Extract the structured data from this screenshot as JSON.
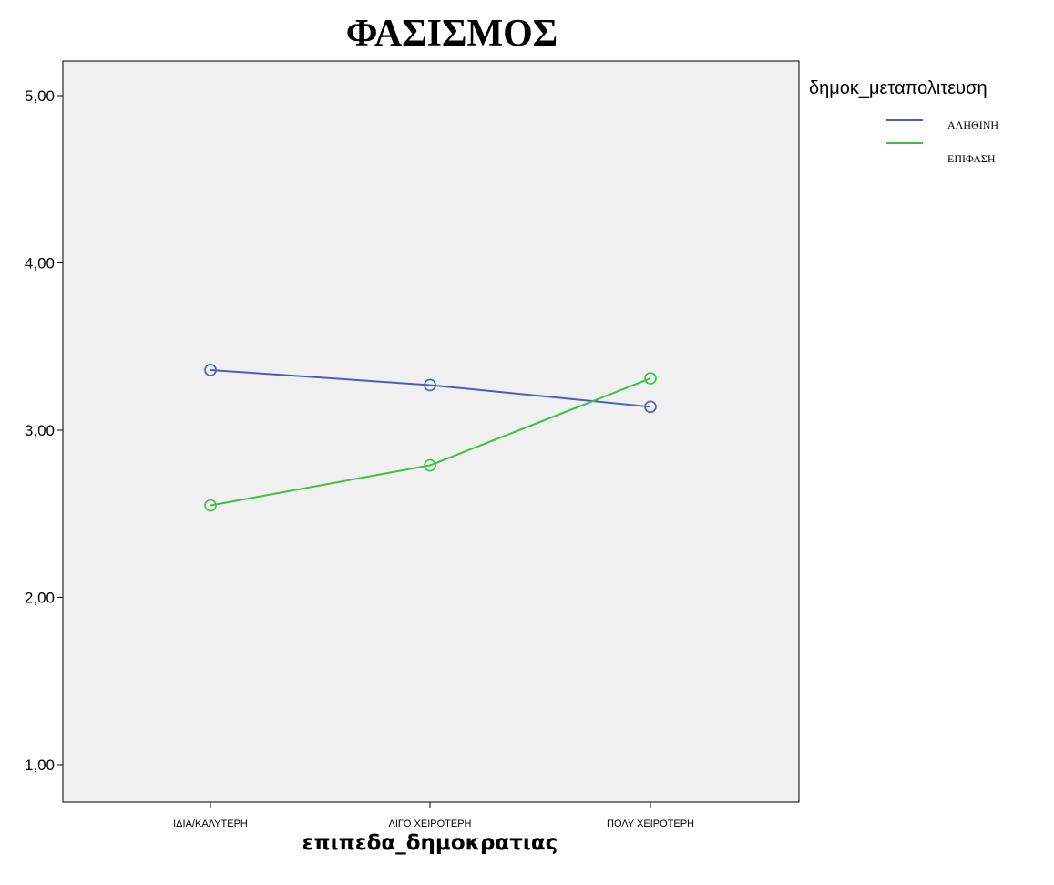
{
  "chart_data": {
    "type": "line",
    "title": "ΦΑΣΙΣΜΟΣ",
    "xlabel": "επιπεδα_δημοκρατιας",
    "ylabel": "",
    "categories": [
      "ΙΔΙΑ/ΚΑΛΥΤΕΡΗ",
      "ΛΙΓΟ ΧΕΙΡΟΤΕΡΗ",
      "ΠΟΛΥ ΧΕΙΡΟΤΕΡΗ"
    ],
    "ylim": [
      0.8,
      5.2
    ],
    "yticks": [
      {
        "value": 1,
        "label": "1,00"
      },
      {
        "value": 2,
        "label": "2,00"
      },
      {
        "value": 3,
        "label": "3,00"
      },
      {
        "value": 4,
        "label": "4,00"
      },
      {
        "value": 5,
        "label": "5,00"
      }
    ],
    "grid": false,
    "legend": {
      "title": "δημοκ_μεταπολιτευση",
      "placement": "right"
    },
    "series": [
      {
        "name": "ΑΛΗΘΙΝΗ",
        "color": "#4b5cc4",
        "values": [
          3.36,
          3.27,
          3.14
        ],
        "marker": "circle"
      },
      {
        "name": "ΕΠΙΦΑΣΗ",
        "color": "#3fbf4a",
        "values": [
          2.55,
          2.79,
          3.31
        ],
        "marker": "circle"
      }
    ],
    "colors": {
      "plot_background": "#f0f0f0",
      "axis": "#000000"
    }
  }
}
